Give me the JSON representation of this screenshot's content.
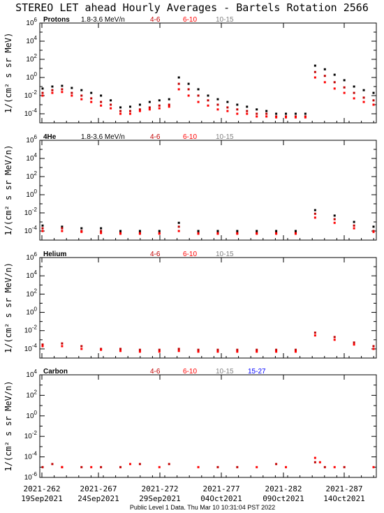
{
  "title": "STEREO LET ahead Hourly Averages - Bartels Rotation 2566",
  "footer": "Public Level 1 Data. Thu Mar 10 10:31:04 PST 2022",
  "colors": {
    "1.8-3.6 MeV/n": "#000000",
    "4-6": "#c00000",
    "6-10": "#ff0000",
    "10-15": "#808080",
    "15-27": "#0000ff"
  },
  "chart_data": [
    {
      "type": "scatter",
      "panel": "Protons",
      "label": "Protons",
      "ylabel": "1/(cm² s sr MeV)",
      "yscale": "log",
      "ylim": [
        1e-05,
        1000000.0
      ],
      "ytick_exps": [
        -4,
        -2,
        0,
        2,
        4,
        6
      ],
      "legend": [
        "1.8-3.6 MeV/n",
        "4-6",
        "6-10",
        "10-15"
      ],
      "series": [
        {
          "name": "1.8-3.6 MeV/n",
          "points": [
            [
              0,
              0.06
            ],
            [
              1,
              0.1
            ],
            [
              2,
              0.12
            ],
            [
              3,
              0.07
            ],
            [
              4,
              0.04
            ],
            [
              5,
              0.02
            ],
            [
              6,
              0.01
            ],
            [
              7,
              0.003
            ],
            [
              8,
              0.0005
            ],
            [
              9,
              0.0006
            ],
            [
              10,
              0.001
            ],
            [
              11,
              0.002
            ],
            [
              12,
              0.003
            ],
            [
              13,
              0.004
            ],
            [
              14,
              1.0
            ],
            [
              15,
              0.2
            ],
            [
              16,
              0.05
            ],
            [
              17,
              0.01
            ],
            [
              18,
              0.004
            ],
            [
              19,
              0.002
            ],
            [
              20,
              0.001
            ],
            [
              21,
              0.0006
            ],
            [
              22,
              0.0003
            ],
            [
              23,
              0.0002
            ],
            [
              24,
              0.0001
            ],
            [
              25,
              0.0001
            ],
            [
              26,
              0.0001
            ],
            [
              27,
              0.0001
            ],
            [
              28,
              20
            ],
            [
              29,
              8
            ],
            [
              30,
              2
            ],
            [
              31,
              0.5
            ],
            [
              32,
              0.1
            ],
            [
              33,
              0.04
            ],
            [
              34,
              0.02
            ]
          ]
        },
        {
          "name": "4-6",
          "points": [
            [
              0,
              0.02
            ],
            [
              1,
              0.04
            ],
            [
              2,
              0.05
            ],
            [
              3,
              0.02
            ],
            [
              4,
              0.01
            ],
            [
              5,
              0.005
            ],
            [
              6,
              0.002
            ],
            [
              7,
              0.001
            ],
            [
              8,
              0.0002
            ],
            [
              9,
              0.0002
            ],
            [
              10,
              0.0003
            ],
            [
              11,
              0.0005
            ],
            [
              12,
              0.0008
            ],
            [
              13,
              0.001
            ],
            [
              14,
              0.2
            ],
            [
              15,
              0.05
            ],
            [
              16,
              0.01
            ],
            [
              17,
              0.003
            ],
            [
              18,
              0.001
            ],
            [
              19,
              0.0005
            ],
            [
              20,
              0.0003
            ],
            [
              21,
              0.0002
            ],
            [
              22,
              0.0001
            ],
            [
              23,
              0.0001
            ],
            [
              24,
              5e-05
            ],
            [
              25,
              5e-05
            ],
            [
              26,
              5e-05
            ],
            [
              27,
              5e-05
            ],
            [
              28,
              4
            ],
            [
              29,
              1.5
            ],
            [
              30,
              0.3
            ],
            [
              31,
              0.08
            ],
            [
              32,
              0.02
            ],
            [
              33,
              0.006
            ],
            [
              34,
              0.003
            ]
          ]
        },
        {
          "name": "6-10",
          "points": [
            [
              0,
              0.01
            ],
            [
              1,
              0.02
            ],
            [
              2,
              0.025
            ],
            [
              3,
              0.01
            ],
            [
              4,
              0.004
            ],
            [
              5,
              0.002
            ],
            [
              6,
              0.0008
            ],
            [
              7,
              0.0004
            ],
            [
              8,
              0.0001
            ],
            [
              9,
              0.0001
            ],
            [
              10,
              0.0002
            ],
            [
              11,
              0.0003
            ],
            [
              12,
              0.0004
            ],
            [
              13,
              0.0006
            ],
            [
              14,
              0.05
            ],
            [
              15,
              0.01
            ],
            [
              16,
              0.002
            ],
            [
              17,
              0.0008
            ],
            [
              18,
              0.0003
            ],
            [
              19,
              0.0002
            ],
            [
              20,
              0.0001
            ],
            [
              21,
              0.0001
            ],
            [
              22,
              5e-05
            ],
            [
              23,
              5e-05
            ],
            [
              24,
              4e-05
            ],
            [
              25,
              4e-05
            ],
            [
              26,
              4e-05
            ],
            [
              27,
              4e-05
            ],
            [
              28,
              1
            ],
            [
              29,
              0.3
            ],
            [
              30,
              0.06
            ],
            [
              31,
              0.02
            ],
            [
              32,
              0.005
            ],
            [
              33,
              0.002
            ],
            [
              34,
              0.001
            ]
          ]
        }
      ]
    },
    {
      "type": "scatter",
      "panel": "4He",
      "label": "4He",
      "ylabel": "1/(cm² s sr MeV/n)",
      "yscale": "log",
      "ylim": [
        1e-05,
        1000000.0
      ],
      "ytick_exps": [
        -4,
        -2,
        0,
        2,
        4,
        6
      ],
      "legend": [
        "1.8-3.6 MeV/n",
        "4-6",
        "6-10",
        "10-15"
      ],
      "series": [
        {
          "name": "1.8-3.6 MeV/n",
          "points": [
            [
              0,
              0.0004
            ],
            [
              2,
              0.0003
            ],
            [
              4,
              0.0002
            ],
            [
              6,
              0.0002
            ],
            [
              8,
              0.0001
            ],
            [
              10,
              0.0001
            ],
            [
              12,
              0.0001
            ],
            [
              14,
              0.0008
            ],
            [
              16,
              0.0001
            ],
            [
              18,
              0.0001
            ],
            [
              20,
              0.0001
            ],
            [
              22,
              0.0001
            ],
            [
              24,
              0.0001
            ],
            [
              26,
              0.0001
            ],
            [
              28,
              0.02
            ],
            [
              30,
              0.005
            ],
            [
              32,
              0.001
            ],
            [
              34,
              0.0003
            ]
          ]
        },
        {
          "name": "4-6",
          "points": [
            [
              0,
              0.0002
            ],
            [
              2,
              0.0002
            ],
            [
              4,
              0.0001
            ],
            [
              6,
              0.0001
            ],
            [
              8,
              6e-05
            ],
            [
              10,
              6e-05
            ],
            [
              12,
              6e-05
            ],
            [
              14,
              0.0003
            ],
            [
              16,
              6e-05
            ],
            [
              18,
              6e-05
            ],
            [
              20,
              6e-05
            ],
            [
              22,
              6e-05
            ],
            [
              24,
              6e-05
            ],
            [
              26,
              6e-05
            ],
            [
              28,
              0.008
            ],
            [
              30,
              0.002
            ],
            [
              32,
              0.0004
            ],
            [
              34,
              0.0001
            ]
          ]
        },
        {
          "name": "6-10",
          "points": [
            [
              0,
              0.0001
            ],
            [
              2,
              0.0001
            ],
            [
              4,
              8e-05
            ],
            [
              6,
              6e-05
            ],
            [
              8,
              5e-05
            ],
            [
              10,
              5e-05
            ],
            [
              12,
              5e-05
            ],
            [
              14,
              0.0001
            ],
            [
              16,
              5e-05
            ],
            [
              18,
              5e-05
            ],
            [
              20,
              5e-05
            ],
            [
              22,
              5e-05
            ],
            [
              24,
              5e-05
            ],
            [
              26,
              5e-05
            ],
            [
              28,
              0.003
            ],
            [
              30,
              0.0008
            ],
            [
              32,
              0.0002
            ],
            [
              34,
              8e-05
            ]
          ]
        }
      ]
    },
    {
      "type": "scatter",
      "panel": "Helium",
      "label": "Helium",
      "ylabel": "1/(cm² s sr MeV/n)",
      "yscale": "log",
      "ylim": [
        1e-05,
        1000000.0
      ],
      "ytick_exps": [
        -4,
        -2,
        0,
        2,
        4,
        6
      ],
      "legend": [
        "4-6",
        "6-10",
        "10-15"
      ],
      "series": [
        {
          "name": "4-6",
          "points": [
            [
              0,
              0.0003
            ],
            [
              2,
              0.0004
            ],
            [
              4,
              0.0002
            ],
            [
              6,
              0.0001
            ],
            [
              8,
              0.0001
            ],
            [
              10,
              8e-05
            ],
            [
              12,
              8e-05
            ],
            [
              14,
              0.0001
            ],
            [
              16,
              8e-05
            ],
            [
              18,
              8e-05
            ],
            [
              20,
              8e-05
            ],
            [
              22,
              8e-05
            ],
            [
              24,
              8e-05
            ],
            [
              26,
              8e-05
            ],
            [
              28,
              0.006
            ],
            [
              30,
              0.002
            ],
            [
              32,
              0.0005
            ],
            [
              34,
              0.0002
            ]
          ]
        },
        {
          "name": "6-10",
          "points": [
            [
              0,
              0.0002
            ],
            [
              2,
              0.0002
            ],
            [
              4,
              0.0001
            ],
            [
              6,
              8e-05
            ],
            [
              8,
              6e-05
            ],
            [
              10,
              5e-05
            ],
            [
              12,
              5e-05
            ],
            [
              14,
              6e-05
            ],
            [
              16,
              5e-05
            ],
            [
              18,
              5e-05
            ],
            [
              20,
              5e-05
            ],
            [
              22,
              5e-05
            ],
            [
              24,
              5e-05
            ],
            [
              26,
              5e-05
            ],
            [
              28,
              0.003
            ],
            [
              30,
              0.001
            ],
            [
              32,
              0.0003
            ],
            [
              34,
              0.0001
            ]
          ]
        }
      ]
    },
    {
      "type": "scatter",
      "panel": "Carbon",
      "label": "Carbon",
      "ylabel": "1/(cm² s sr MeV/n)",
      "yscale": "log",
      "ylim": [
        1e-06,
        10000.0
      ],
      "ytick_exps": [
        -6,
        -4,
        -2,
        0,
        2,
        4
      ],
      "legend": [
        "4-6",
        "6-10",
        "10-15",
        "15-27"
      ],
      "series": [
        {
          "name": "4-6",
          "points": [
            [
              0,
              1e-05
            ],
            [
              1,
              2e-05
            ],
            [
              2,
              1e-05
            ],
            [
              4,
              1e-05
            ],
            [
              6,
              1e-05
            ],
            [
              8,
              1e-05
            ],
            [
              10,
              2e-05
            ],
            [
              13,
              2e-05
            ],
            [
              18,
              1e-05
            ],
            [
              20,
              1e-05
            ],
            [
              24,
              2e-05
            ],
            [
              28,
              3e-05
            ],
            [
              29,
              1e-05
            ],
            [
              31,
              1e-05
            ]
          ]
        },
        {
          "name": "6-10",
          "points": [
            [
              2,
              1e-05
            ],
            [
              5,
              1e-05
            ],
            [
              9,
              2e-05
            ],
            [
              12,
              1e-05
            ],
            [
              16,
              1e-05
            ],
            [
              22,
              1e-05
            ],
            [
              25,
              1e-05
            ],
            [
              28,
              8e-05
            ],
            [
              28.5,
              3e-05
            ],
            [
              30,
              1e-05
            ],
            [
              34,
              1e-05
            ]
          ]
        }
      ]
    }
  ],
  "x_axis": {
    "range": [
      "2021-262",
      "2021-290"
    ],
    "ticks": [
      {
        "doy": "2021-262",
        "date": "19Sep2021"
      },
      {
        "doy": "2021-267",
        "date": "24Sep2021"
      },
      {
        "doy": "2021-272",
        "date": "29Sep2021"
      },
      {
        "doy": "2021-277",
        "date": "04Oct2021"
      },
      {
        "doy": "2021-282",
        "date": "09Oct2021"
      },
      {
        "doy": "2021-287",
        "date": "14Oct2021"
      }
    ]
  }
}
